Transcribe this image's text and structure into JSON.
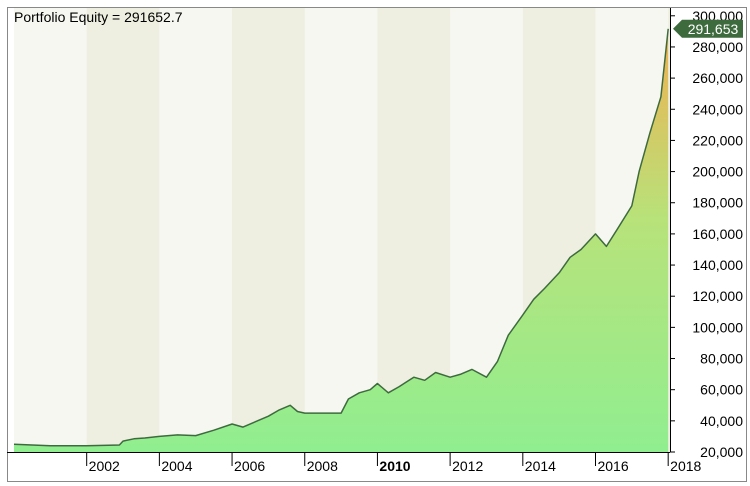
{
  "chart_data": {
    "type": "area",
    "title": "Portfolio Equity = 291652.7",
    "xlabel": "",
    "ylabel": "",
    "ylim": [
      20000,
      305000
    ],
    "xlim": [
      2000.0,
      2018.05
    ],
    "yticks": [
      20000,
      40000,
      60000,
      80000,
      100000,
      120000,
      140000,
      160000,
      180000,
      200000,
      220000,
      240000,
      260000,
      280000,
      300000
    ],
    "ytick_labels": [
      "20,000",
      "40,000",
      "60,000",
      "80,000",
      "100,000",
      "120,000",
      "140,000",
      "160,000",
      "180,000",
      "200,000",
      "220,000",
      "240,000",
      "260,000",
      "280,000",
      "300,000"
    ],
    "xticks": [
      2002,
      2004,
      2006,
      2008,
      2010,
      2012,
      2014,
      2016,
      2018
    ],
    "xtick_labels": [
      "2002",
      "2004",
      "2006",
      "2008",
      "2010",
      "2012",
      "2014",
      "2016",
      "2018"
    ],
    "xtick_bold": "2010",
    "last_value_label": "291,653",
    "grid": false,
    "colors": {
      "line": "#3e6b3e",
      "fill_low": "#90ee90",
      "fill_high": "#f0b050",
      "background": "#f7f7f2",
      "band": "#eeefe0",
      "frame": "#000000",
      "marker": "#3e6b3e"
    },
    "series": [
      {
        "x": [
          2000.0,
          2001.0,
          2002.0,
          2002.9,
          2003.0,
          2003.3,
          2003.6,
          2004.0,
          2004.5,
          2005.0,
          2005.5,
          2006.0,
          2006.3,
          2006.7,
          2007.0,
          2007.3,
          2007.6,
          2007.8,
          2008.0,
          2008.5,
          2009.0,
          2009.2,
          2009.5,
          2009.8,
          2010.0,
          2010.3,
          2010.6,
          2011.0,
          2011.3,
          2011.6,
          2012.0,
          2012.3,
          2012.6,
          2013.0,
          2013.3,
          2013.6,
          2014.0,
          2014.3,
          2014.6,
          2015.0,
          2015.3,
          2015.6,
          2016.0,
          2016.3,
          2016.6,
          2017.0,
          2017.2,
          2017.5,
          2017.8,
          2018.0
        ],
        "values": [
          25000,
          24000,
          24000,
          24500,
          27000,
          28500,
          29000,
          30000,
          31000,
          30500,
          34000,
          38000,
          36000,
          40000,
          43000,
          47000,
          50000,
          46000,
          45000,
          45000,
          45000,
          54000,
          58000,
          60000,
          64000,
          58000,
          62000,
          68000,
          66000,
          71000,
          68000,
          70000,
          73000,
          68000,
          78000,
          95000,
          108000,
          118000,
          125000,
          135000,
          145000,
          150000,
          160000,
          152000,
          163000,
          178000,
          200000,
          225000,
          248000,
          291653
        ]
      }
    ]
  }
}
